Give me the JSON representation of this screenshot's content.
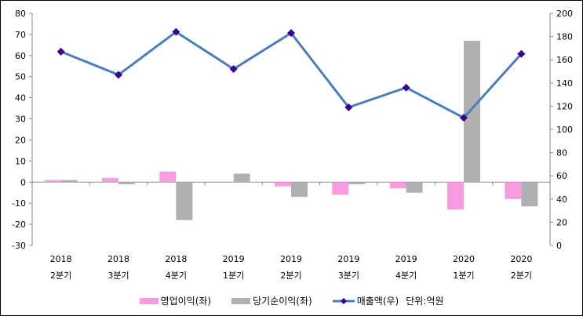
{
  "chart_data": {
    "type": "bar",
    "categories": [
      {
        "year": "2018",
        "quarter": "2분기"
      },
      {
        "year": "2018",
        "quarter": "3분기"
      },
      {
        "year": "2018",
        "quarter": "4분기"
      },
      {
        "year": "2019",
        "quarter": "1분기"
      },
      {
        "year": "2019",
        "quarter": "2분기"
      },
      {
        "year": "2019",
        "quarter": "3분기"
      },
      {
        "year": "2019",
        "quarter": "4분기"
      },
      {
        "year": "2020",
        "quarter": "1분기"
      },
      {
        "year": "2020",
        "quarter": "2분기"
      }
    ],
    "series": [
      {
        "name": "영업이익(좌)",
        "type": "bar",
        "axis": "left",
        "color": "#f79ce0",
        "values": [
          1,
          2,
          5,
          0,
          -2,
          -6,
          -3,
          -13,
          -8
        ]
      },
      {
        "name": "당기순이익(좌)",
        "type": "bar",
        "axis": "left",
        "color": "#b0b0b0",
        "values": [
          1,
          -1,
          -18,
          4,
          -7,
          -1,
          -5,
          67,
          -11.5
        ]
      },
      {
        "name": "매출액(우)",
        "type": "line",
        "axis": "right",
        "color": "#4a7ebb",
        "marker_color": "#3a0090",
        "values": [
          167,
          147,
          184,
          152,
          183,
          119,
          136,
          110,
          165
        ]
      }
    ],
    "y_left": {
      "range": [
        -30,
        80
      ],
      "ticks": [
        -30,
        -20,
        -10,
        0,
        10,
        20,
        30,
        40,
        50,
        60,
        70,
        80
      ]
    },
    "y_right": {
      "range": [
        0,
        200
      ],
      "ticks": [
        0,
        20,
        40,
        60,
        80,
        100,
        120,
        140,
        160,
        180,
        200
      ]
    },
    "unit_note": "단위:억원",
    "legend_position": "bottom",
    "grid": false
  }
}
